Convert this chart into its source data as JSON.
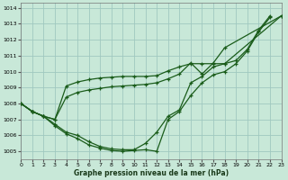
{
  "title": "Graphe pression niveau de la mer (hPa)",
  "bg_color": "#c8e8d8",
  "grid_color": "#a0c8c0",
  "line_color": "#1a5c1a",
  "xmin": 0,
  "xmax": 23,
  "ymin": 1004.5,
  "ymax": 1014.3,
  "yticks": [
    1005,
    1006,
    1007,
    1008,
    1009,
    1010,
    1011,
    1012,
    1013,
    1014
  ],
  "xticks": [
    0,
    1,
    2,
    3,
    4,
    5,
    6,
    7,
    8,
    9,
    10,
    11,
    12,
    13,
    14,
    15,
    16,
    17,
    18,
    19,
    20,
    21,
    22,
    23
  ],
  "series": [
    [
      1008.0,
      1007.5,
      1007.2,
      1006.6,
      1006.1,
      1005.8,
      1005.4,
      1005.2,
      1005.05,
      1005.0,
      1005.05,
      1005.1,
      1005.0,
      1007.0,
      1007.5,
      1008.5,
      1009.3,
      1009.8,
      1010.0,
      1010.5,
      1011.3,
      1012.5,
      1013.4
    ],
    [
      1008.0,
      1007.5,
      1007.2,
      1006.7,
      1006.2,
      1006.0,
      1005.6,
      1005.3,
      1005.15,
      1005.1,
      1005.1,
      1005.5,
      1006.2,
      1007.2,
      1007.6,
      1009.3,
      1009.7,
      1010.3,
      1010.5,
      1010.7,
      1011.4,
      1012.6,
      1013.5
    ],
    [
      1008.0,
      1007.5,
      1007.2,
      1007.0,
      1008.4,
      1008.7,
      1008.85,
      1008.95,
      1009.05,
      1009.1,
      1009.15,
      1009.2,
      1009.3,
      1009.55,
      1009.85,
      1010.55,
      1009.85,
      1010.55,
      1011.5,
      1013.5
    ],
    [
      1008.0,
      1007.5,
      1007.2,
      1007.0,
      1009.1,
      1009.35,
      1009.5,
      1009.6,
      1009.65,
      1009.7,
      1009.7,
      1009.7,
      1009.75,
      1010.05,
      1010.3,
      1010.5,
      1010.5,
      1010.5,
      1010.5,
      1013.5
    ]
  ],
  "series_x": [
    [
      0,
      1,
      2,
      3,
      4,
      5,
      6,
      7,
      8,
      9,
      10,
      11,
      12,
      13,
      14,
      15,
      16,
      17,
      18,
      19,
      20,
      21,
      22
    ],
    [
      0,
      1,
      2,
      3,
      4,
      5,
      6,
      7,
      8,
      9,
      10,
      11,
      12,
      13,
      14,
      15,
      16,
      17,
      18,
      19,
      20,
      21,
      22
    ],
    [
      0,
      1,
      2,
      3,
      4,
      5,
      6,
      7,
      8,
      9,
      10,
      11,
      12,
      13,
      14,
      15,
      16,
      17,
      18,
      23
    ],
    [
      0,
      1,
      2,
      3,
      4,
      5,
      6,
      7,
      8,
      9,
      10,
      11,
      12,
      13,
      14,
      15,
      16,
      17,
      18,
      23
    ]
  ]
}
